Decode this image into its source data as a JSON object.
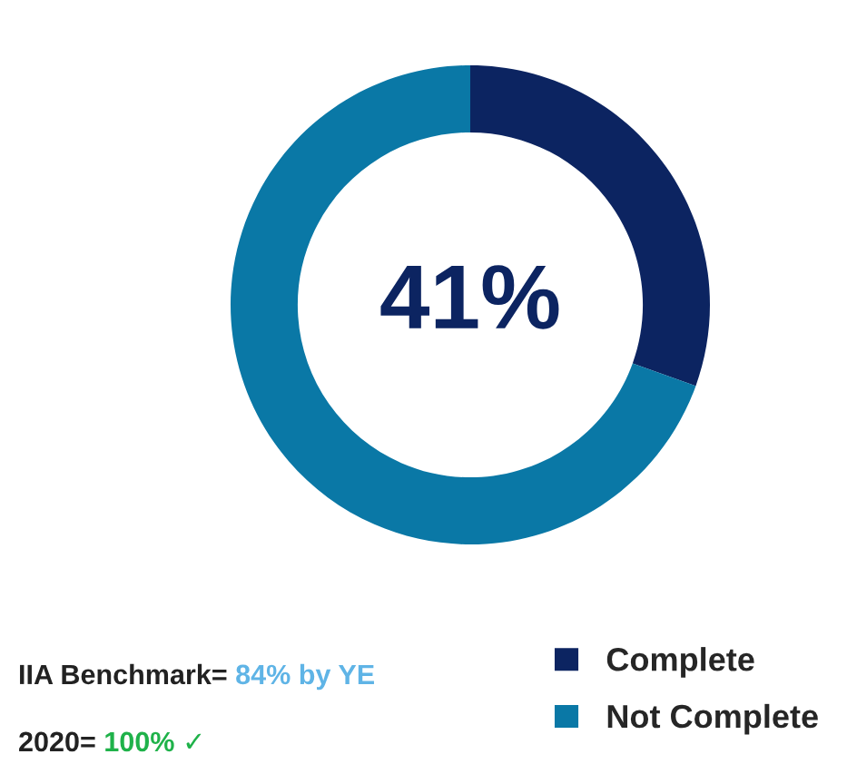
{
  "chart_data": {
    "type": "donut",
    "categories": [
      "Complete",
      "Not Complete"
    ],
    "values": [
      30.5,
      69.5
    ],
    "colors": [
      "#0c2461",
      "#0a78a6"
    ],
    "legend": "bottom right",
    "annotations": [
      "41%",
      "IIA Benchmark=",
      "84% by YE",
      "2020=",
      "100% ✓"
    ]
  }
}
